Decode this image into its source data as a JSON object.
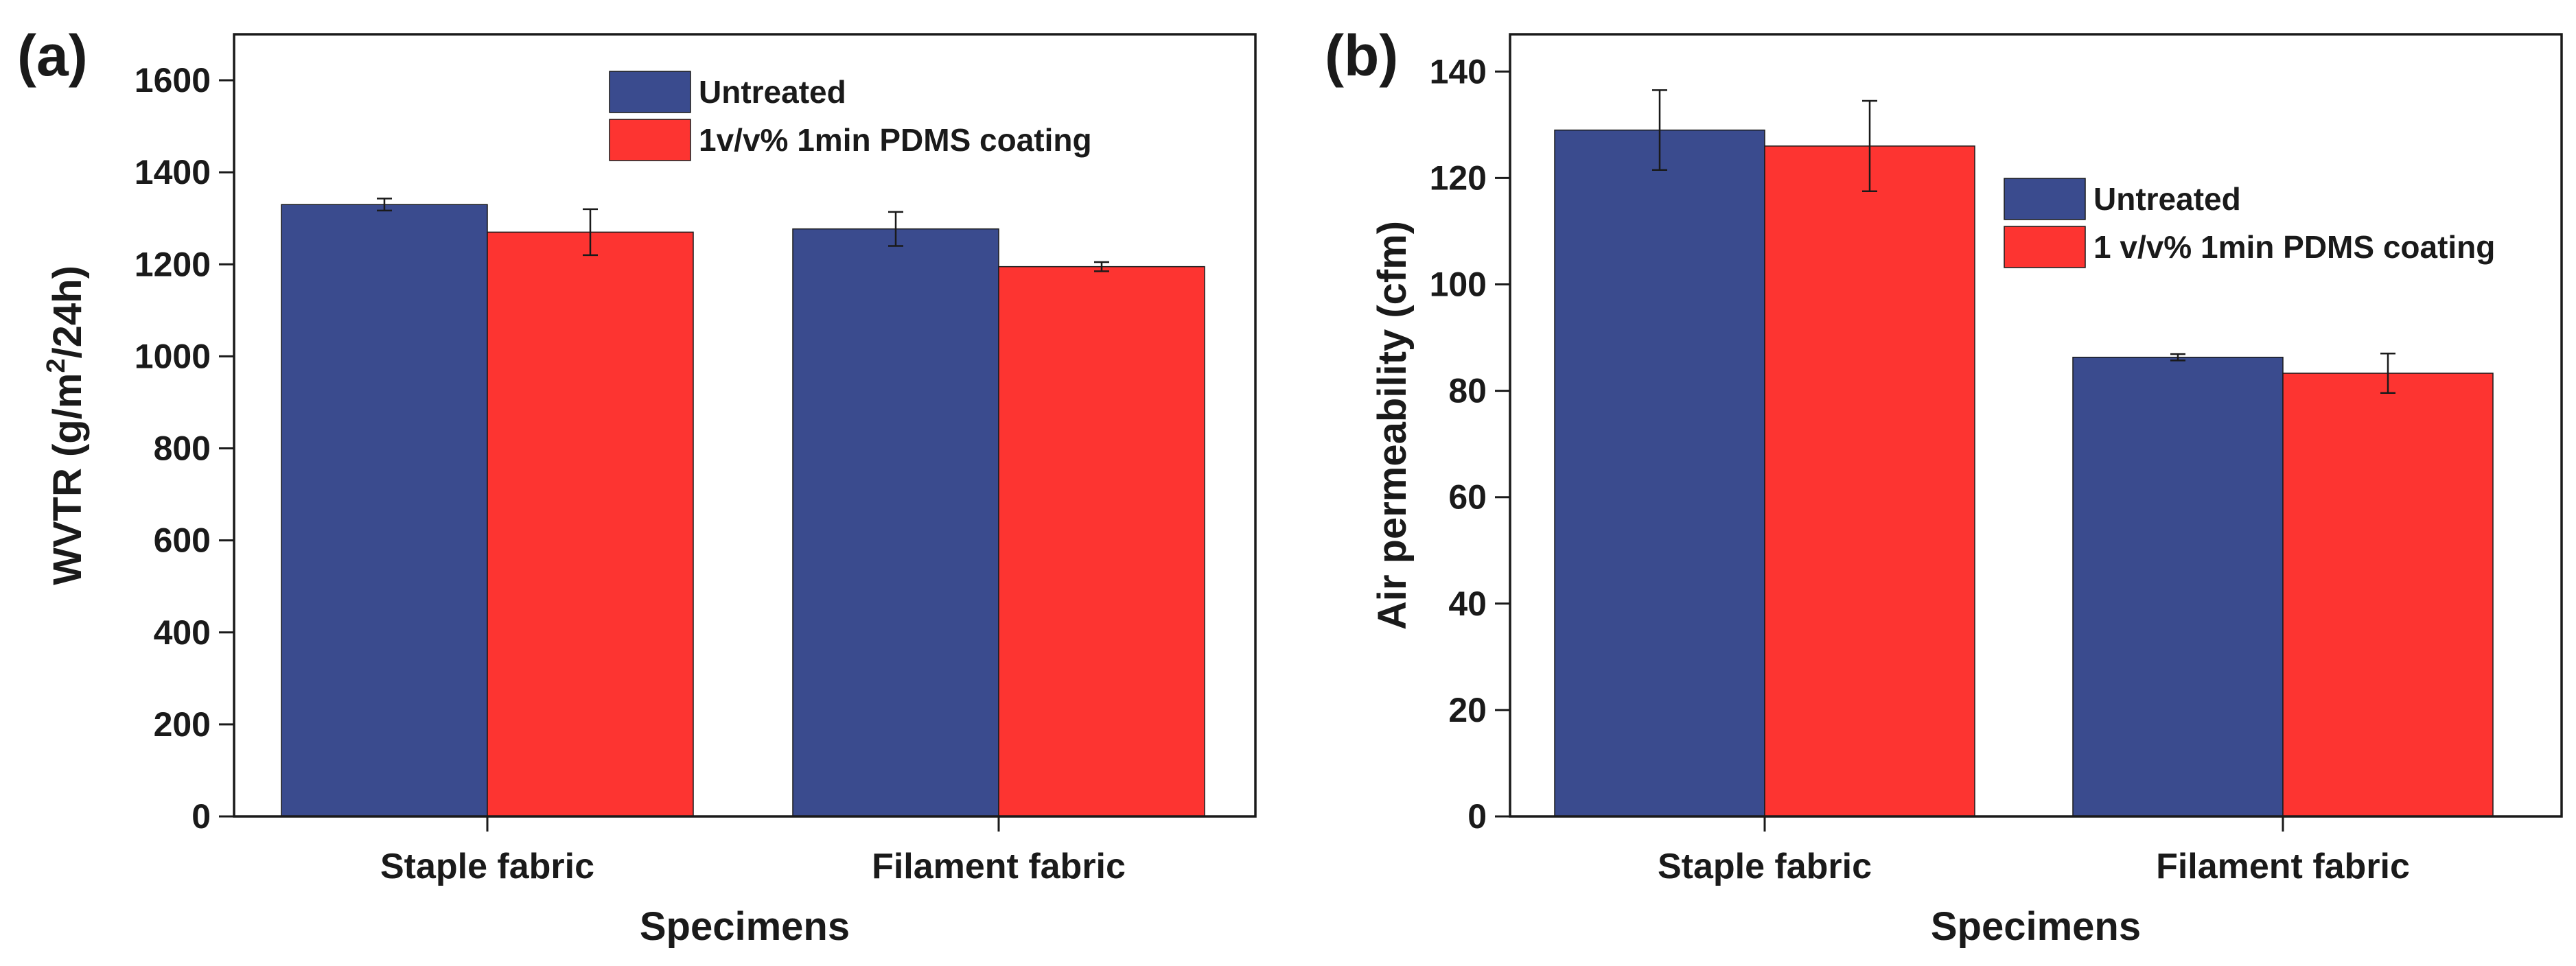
{
  "colors": {
    "untreated": "#3a4b8e",
    "coated": "#fd3431",
    "axis": "#1a1a1a",
    "error_bar": "#1a1a1a"
  },
  "chart_data": [
    {
      "type": "bar",
      "panel_label": "(a)",
      "xlabel": "Specimens",
      "ylabel_prefix": "WVTR (g/m",
      "ylabel_sup": "2",
      "ylabel_suffix": "/24h)",
      "ylim": [
        0,
        1700
      ],
      "yticks": [
        "0",
        "200",
        "400",
        "600",
        "800",
        "1000",
        "1200",
        "1400",
        "1600"
      ],
      "categories": [
        "Staple fabric",
        "Filament fabric"
      ],
      "series": [
        {
          "name": "Untreated",
          "values": [
            1330,
            1277
          ],
          "errors": [
            13,
            37
          ]
        },
        {
          "name": "1v/v% 1min PDMS coating",
          "values": [
            1270,
            1195
          ],
          "errors": [
            50,
            10
          ]
        }
      ],
      "legend_position": "top-right"
    },
    {
      "type": "bar",
      "panel_label": "(b)",
      "xlabel": "Specimens",
      "ylabel": "Air permeability (cfm)",
      "ylim": [
        0,
        147
      ],
      "yticks": [
        "0",
        "20",
        "40",
        "60",
        "80",
        "100",
        "120",
        "140"
      ],
      "categories": [
        "Staple fabric",
        "Filament fabric"
      ],
      "series": [
        {
          "name": "Untreated",
          "values": [
            129,
            86.3
          ],
          "errors": [
            7.5,
            0.6
          ]
        },
        {
          "name": "1 v/v% 1min PDMS coating",
          "values": [
            126,
            83.3
          ],
          "errors": [
            8.5,
            3.7
          ]
        }
      ],
      "legend_position": "top-right"
    }
  ]
}
